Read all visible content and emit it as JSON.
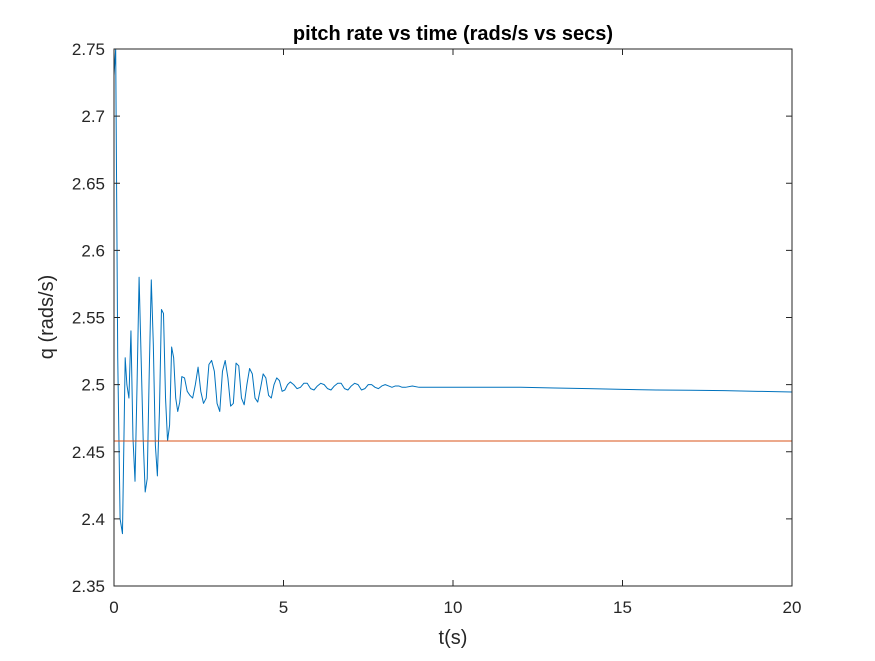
{
  "chart_data": {
    "type": "line",
    "title": "pitch rate vs time (rads/s vs secs)",
    "xlabel": "t(s)",
    "ylabel": "q (rads/s)",
    "xlim": [
      0,
      20
    ],
    "ylim": [
      2.35,
      2.75
    ],
    "xticks": [
      0,
      5,
      10,
      15,
      20
    ],
    "xtick_labels": [
      "0",
      "5",
      "10",
      "15",
      "20"
    ],
    "yticks": [
      2.35,
      2.4,
      2.45,
      2.5,
      2.55,
      2.6,
      2.65,
      2.7,
      2.75
    ],
    "ytick_labels": [
      "2.35",
      "2.4",
      "2.45",
      "2.5",
      "2.55",
      "2.6",
      "2.65",
      "2.7",
      "2.75"
    ],
    "grid": false,
    "legend": "none",
    "series": [
      {
        "color": "#0072BD",
        "x": [
          0.0,
          0.05,
          0.11,
          0.18,
          0.25,
          0.33,
          0.38,
          0.44,
          0.5,
          0.56,
          0.62,
          0.68,
          0.74,
          0.8,
          0.86,
          0.92,
          0.98,
          1.04,
          1.1,
          1.16,
          1.22,
          1.28,
          1.34,
          1.4,
          1.46,
          1.52,
          1.58,
          1.64,
          1.7,
          1.76,
          1.82,
          1.88,
          1.94,
          2.0,
          2.08,
          2.16,
          2.24,
          2.32,
          2.4,
          2.48,
          2.56,
          2.64,
          2.72,
          2.8,
          2.88,
          2.96,
          3.04,
          3.12,
          3.2,
          3.28,
          3.36,
          3.44,
          3.52,
          3.6,
          3.68,
          3.76,
          3.84,
          3.92,
          4.0,
          4.08,
          4.16,
          4.24,
          4.32,
          4.4,
          4.48,
          4.56,
          4.64,
          4.72,
          4.8,
          4.88,
          4.96,
          5.04,
          5.12,
          5.2,
          5.3,
          5.4,
          5.5,
          5.6,
          5.7,
          5.8,
          5.9,
          6.0,
          6.1,
          6.2,
          6.3,
          6.4,
          6.5,
          6.6,
          6.7,
          6.8,
          6.9,
          7.0,
          7.1,
          7.2,
          7.3,
          7.4,
          7.5,
          7.6,
          7.7,
          7.8,
          7.9,
          8.0,
          8.1,
          8.2,
          8.3,
          8.4,
          8.5,
          8.6,
          8.8,
          9.0,
          9.5,
          10.0,
          11.0,
          12.0,
          13.0,
          14.0,
          15.0,
          16.0,
          17.0,
          18.0,
          19.0,
          20.0
        ],
        "y": [
          2.73,
          2.75,
          2.52,
          2.4,
          2.389,
          2.52,
          2.5,
          2.49,
          2.54,
          2.46,
          2.428,
          2.5,
          2.58,
          2.52,
          2.46,
          2.42,
          2.43,
          2.51,
          2.578,
          2.53,
          2.455,
          2.432,
          2.48,
          2.556,
          2.553,
          2.49,
          2.458,
          2.47,
          2.528,
          2.52,
          2.49,
          2.48,
          2.487,
          2.506,
          2.505,
          2.495,
          2.492,
          2.49,
          2.5,
          2.513,
          2.495,
          2.486,
          2.49,
          2.515,
          2.518,
          2.51,
          2.486,
          2.48,
          2.51,
          2.518,
          2.505,
          2.484,
          2.486,
          2.516,
          2.514,
          2.49,
          2.485,
          2.5,
          2.512,
          2.508,
          2.49,
          2.487,
          2.497,
          2.508,
          2.505,
          2.492,
          2.49,
          2.5,
          2.505,
          2.503,
          2.495,
          2.496,
          2.5,
          2.502,
          2.5,
          2.497,
          2.498,
          2.501,
          2.501,
          2.497,
          2.496,
          2.499,
          2.501,
          2.5,
          2.497,
          2.496,
          2.499,
          2.501,
          2.501,
          2.497,
          2.496,
          2.499,
          2.501,
          2.5,
          2.496,
          2.497,
          2.5,
          2.5,
          2.498,
          2.497,
          2.499,
          2.5,
          2.499,
          2.498,
          2.499,
          2.499,
          2.498,
          2.498,
          2.499,
          2.498,
          2.498,
          2.498,
          2.498,
          2.498,
          2.4975,
          2.497,
          2.4965,
          2.496,
          2.4958,
          2.4955,
          2.495,
          2.4945
        ]
      },
      {
        "color": "#D95319",
        "x": [
          0,
          20
        ],
        "y": [
          2.458,
          2.458
        ]
      }
    ]
  }
}
